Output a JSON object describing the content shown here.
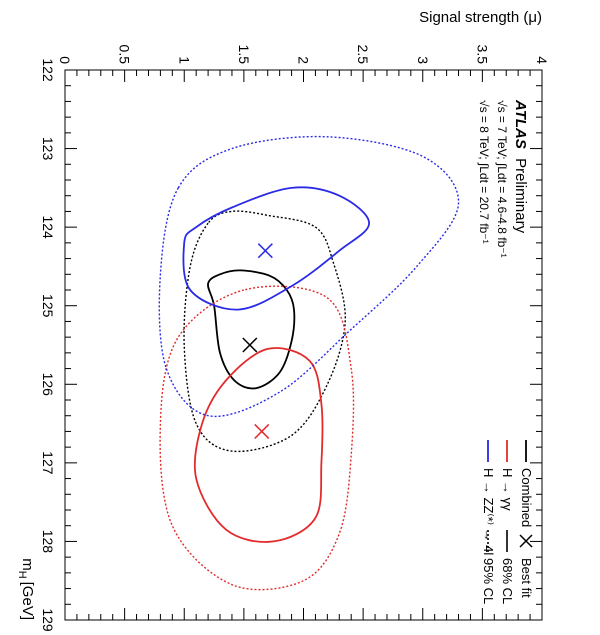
{
  "chart_data": {
    "type": "contour",
    "experiment": "ATLAS",
    "status": "Preliminary",
    "lumi_lines": [
      "√s = 7 TeV; ∫Ldt = 4.6-4.8 fb⁻¹",
      "√s = 8 TeV; ∫Ldt = 20.7 fb⁻¹"
    ],
    "xlabel": "m_H [GeV]",
    "ylabel": "Signal strength (μ)",
    "xlim": [
      122,
      129
    ],
    "ylim": [
      0,
      4
    ],
    "x_ticks": [
      "122",
      "123",
      "124",
      "125",
      "126",
      "127",
      "128",
      "129"
    ],
    "y_ticks": [
      "0",
      "0.5",
      "1",
      "1.5",
      "2",
      "2.5",
      "3",
      "3.5",
      "4"
    ],
    "legend": {
      "channels": [
        {
          "label": "Combined",
          "color": "#000000"
        },
        {
          "label": "H → γγ",
          "color": "#e32b2b"
        },
        {
          "label": "H → ZZ⁽*⁾ → 4l",
          "color": "#2a2ae8"
        }
      ],
      "styles": [
        {
          "label": "Best fit",
          "symbol": "cross"
        },
        {
          "label": "68% CL",
          "line": "solid"
        },
        {
          "label": "95% CL",
          "line": "dotted"
        }
      ]
    },
    "series": [
      {
        "name": "Combined",
        "color": "#000000",
        "best_fit": {
          "x": 125.5,
          "y": 1.55
        },
        "cl68": [
          [
            124.72,
            1.2
          ],
          [
            125.0,
            1.25
          ],
          [
            125.6,
            1.3
          ],
          [
            125.95,
            1.42
          ],
          [
            126.05,
            1.6
          ],
          [
            125.85,
            1.8
          ],
          [
            125.45,
            1.9
          ],
          [
            125.05,
            1.92
          ],
          [
            124.8,
            1.86
          ],
          [
            124.62,
            1.72
          ],
          [
            124.55,
            1.47
          ],
          [
            124.6,
            1.3
          ]
        ],
        "cl95": [
          [
            123.95,
            1.2
          ],
          [
            124.5,
            1.05
          ],
          [
            125.5,
            1.0
          ],
          [
            126.5,
            1.1
          ],
          [
            126.85,
            1.4
          ],
          [
            126.65,
            1.9
          ],
          [
            126.0,
            2.2
          ],
          [
            125.2,
            2.35
          ],
          [
            124.45,
            2.25
          ],
          [
            124.0,
            2.1
          ],
          [
            123.85,
            1.7
          ],
          [
            123.8,
            1.4
          ]
        ]
      },
      {
        "name": "H → γγ",
        "color": "#e32b2b",
        "best_fit": {
          "x": 126.6,
          "y": 1.65
        },
        "cl68": [
          [
            125.55,
            1.7
          ],
          [
            125.95,
            1.35
          ],
          [
            126.5,
            1.15
          ],
          [
            127.2,
            1.1
          ],
          [
            127.85,
            1.35
          ],
          [
            128.0,
            1.75
          ],
          [
            127.7,
            2.1
          ],
          [
            127.0,
            2.15
          ],
          [
            126.25,
            2.15
          ],
          [
            125.7,
            2.05
          ]
        ],
        "cl95": [
          [
            124.8,
            1.5
          ],
          [
            125.4,
            0.95
          ],
          [
            126.5,
            0.8
          ],
          [
            127.8,
            0.9
          ],
          [
            128.55,
            1.4
          ],
          [
            128.5,
            2.0
          ],
          [
            127.9,
            2.3
          ],
          [
            126.9,
            2.4
          ],
          [
            125.8,
            2.4
          ],
          [
            124.9,
            2.2
          ]
        ]
      },
      {
        "name": "H → ZZ⁽*⁾ → 4l",
        "color": "#2a2ae8",
        "best_fit": {
          "x": 124.3,
          "y": 1.68
        },
        "cl68": [
          [
            124.2,
            1.0
          ],
          [
            124.8,
            1.05
          ],
          [
            125.05,
            1.45
          ],
          [
            124.75,
            1.9
          ],
          [
            124.3,
            2.3
          ],
          [
            123.95,
            2.55
          ],
          [
            123.6,
            2.3
          ],
          [
            123.5,
            1.9
          ],
          [
            123.75,
            1.4
          ],
          [
            124.0,
            1.1
          ]
        ],
        "cl95": [
          [
            123.5,
            0.95
          ],
          [
            124.6,
            0.8
          ],
          [
            125.8,
            0.85
          ],
          [
            126.4,
            1.2
          ],
          [
            126.1,
            1.8
          ],
          [
            125.3,
            2.4
          ],
          [
            124.5,
            2.95
          ],
          [
            123.7,
            3.3
          ],
          [
            123.1,
            3.0
          ],
          [
            122.85,
            2.2
          ],
          [
            123.0,
            1.4
          ]
        ]
      }
    ]
  }
}
